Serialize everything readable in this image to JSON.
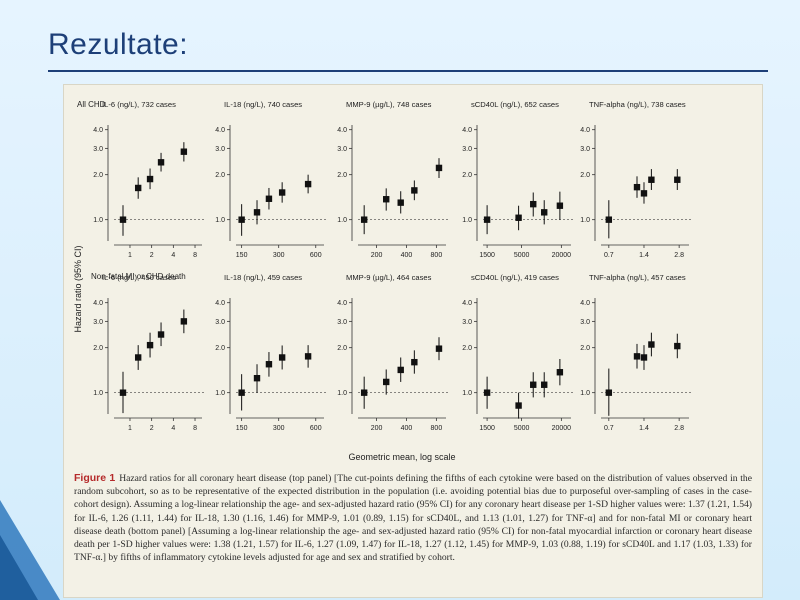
{
  "slide": {
    "title": "Rezultate:",
    "colors": {
      "background": "#dcefff",
      "title": "#1d3f78",
      "panel": "#f3f1e6",
      "caption_label": "#b52a2a",
      "corner": "#3a7fc1"
    }
  },
  "figure": {
    "y_axis_label": "Hazard ratio (95% CI)",
    "x_axis_label": "Geometric mean, log scale",
    "rows": [
      {
        "label": "All CHD"
      },
      {
        "label": "Non-fatal MI or CHD death"
      }
    ],
    "caption_label": "Figure 1",
    "caption_text": "Hazard ratios for all coronary heart disease (top panel) [The cut-points defining the fifths of each cytokine were based on the distribution of values observed in the random subcohort, so as to be representative of the expected distribution in the population (i.e. avoiding potential bias due to purposeful over-sampling of cases in the case-cohort design). Assuming a log-linear relationship the age- and sex-adjusted hazard ratio (95% CI) for any coronary heart disease per 1-SD higher values were: 1.37 (1.21, 1.54) for IL-6, 1.26 (1.11, 1.44) for IL-18, 1.30 (1.16, 1.46) for MMP-9, 1.01 (0.89, 1.15) for sCD40L, and 1.13 (1.01, 1.27) for TNF-α] and for non-fatal MI or coronary heart disease death (bottom panel) [Assuming a log-linear relationship the age- and sex-adjusted hazard ratio (95% CI) for non-fatal myocardial infarction or coronary heart disease death per 1-SD higher values were: 1.38 (1.21, 1.57) for IL-6, 1.27 (1.09, 1.47) for IL-18, 1.27 (1.12, 1.45) for MMP-9, 1.03 (0.88, 1.19) for sCD40L and 1.17 (1.03, 1.33) for TNF-α.] by fifths of inflammatory cytokine levels adjusted for age and sex and stratified by cohort."
  },
  "chart_data": [
    {
      "type": "scatter",
      "row": 0,
      "col": 0,
      "title": "IL-6 (ng/L), 732 cases",
      "x_scale": "log",
      "xlim": [
        0.6,
        10
      ],
      "xticks": [
        1,
        2,
        4,
        8
      ],
      "xtick_labels": [
        "1",
        "2",
        "4",
        "8"
      ],
      "y_scale": "log",
      "ylim": [
        0.72,
        4.3
      ],
      "yticks": [
        1.0,
        2.0,
        3.0,
        4.0
      ],
      "ytick_labels": [
        "1.0",
        "2.0",
        "3.0",
        "4.0"
      ],
      "reference_line": 1.0,
      "points": [
        {
          "x": 0.8,
          "y": 1.0,
          "lo": 0.78,
          "hi": 1.25
        },
        {
          "x": 1.3,
          "y": 1.63,
          "lo": 1.38,
          "hi": 1.92
        },
        {
          "x": 1.9,
          "y": 1.87,
          "lo": 1.6,
          "hi": 2.2
        },
        {
          "x": 2.7,
          "y": 2.42,
          "lo": 2.1,
          "hi": 2.8
        },
        {
          "x": 5.6,
          "y": 2.85,
          "lo": 2.45,
          "hi": 3.3
        }
      ]
    },
    {
      "type": "scatter",
      "row": 0,
      "col": 1,
      "title": "IL-18 (ng/L), 740 cases",
      "x_scale": "log",
      "xlim": [
        135,
        700
      ],
      "xticks": [
        150,
        300,
        600
      ],
      "xtick_labels": [
        "150",
        "300",
        "600"
      ],
      "y_scale": "log",
      "ylim": [
        0.72,
        4.3
      ],
      "yticks": [
        1.0,
        2.0,
        3.0,
        4.0
      ],
      "ytick_labels": [
        "1.0",
        "2.0",
        "3.0",
        "4.0"
      ],
      "reference_line": 1.0,
      "points": [
        {
          "x": 150,
          "y": 1.0,
          "lo": 0.78,
          "hi": 1.27
        },
        {
          "x": 200,
          "y": 1.12,
          "lo": 0.93,
          "hi": 1.35
        },
        {
          "x": 250,
          "y": 1.38,
          "lo": 1.17,
          "hi": 1.63
        },
        {
          "x": 320,
          "y": 1.52,
          "lo": 1.3,
          "hi": 1.78
        },
        {
          "x": 520,
          "y": 1.73,
          "lo": 1.5,
          "hi": 2.0
        }
      ]
    },
    {
      "type": "scatter",
      "row": 0,
      "col": 2,
      "title": "MMP-9 (µg/L), 748 cases",
      "x_scale": "log",
      "xlim": [
        130,
        1000
      ],
      "xticks": [
        200,
        400,
        800
      ],
      "xtick_labels": [
        "200",
        "400",
        "800"
      ],
      "y_scale": "log",
      "ylim": [
        0.72,
        4.3
      ],
      "yticks": [
        1.0,
        2.0,
        3.0,
        4.0
      ],
      "ytick_labels": [
        "1.0",
        "2.0",
        "3.0",
        "4.0"
      ],
      "reference_line": 1.0,
      "points": [
        {
          "x": 150,
          "y": 1.0,
          "lo": 0.8,
          "hi": 1.25
        },
        {
          "x": 250,
          "y": 1.37,
          "lo": 1.15,
          "hi": 1.62
        },
        {
          "x": 350,
          "y": 1.3,
          "lo": 1.1,
          "hi": 1.55
        },
        {
          "x": 480,
          "y": 1.57,
          "lo": 1.35,
          "hi": 1.83
        },
        {
          "x": 850,
          "y": 2.22,
          "lo": 1.9,
          "hi": 2.58
        }
      ]
    },
    {
      "type": "scatter",
      "row": 0,
      "col": 3,
      "title": "sCD40L (ng/L), 652 cases",
      "x_scale": "log",
      "xlim": [
        1300,
        28000
      ],
      "xticks": [
        1500,
        5000,
        20000
      ],
      "xtick_labels": [
        "1500",
        "5000",
        "20000"
      ],
      "y_scale": "log",
      "ylim": [
        0.72,
        4.3
      ],
      "yticks": [
        1.0,
        2.0,
        3.0,
        4.0
      ],
      "ytick_labels": [
        "1.0",
        "2.0",
        "3.0",
        "4.0"
      ],
      "reference_line": 1.0,
      "points": [
        {
          "x": 1500,
          "y": 1.0,
          "lo": 0.8,
          "hi": 1.25
        },
        {
          "x": 4500,
          "y": 1.03,
          "lo": 0.85,
          "hi": 1.24
        },
        {
          "x": 7500,
          "y": 1.27,
          "lo": 1.05,
          "hi": 1.52
        },
        {
          "x": 11000,
          "y": 1.12,
          "lo": 0.93,
          "hi": 1.35
        },
        {
          "x": 19000,
          "y": 1.24,
          "lo": 1.0,
          "hi": 1.54
        }
      ]
    },
    {
      "type": "scatter",
      "row": 0,
      "col": 4,
      "title": "TNF-alpha (ng/L), 738 cases",
      "x_scale": "log",
      "xlim": [
        0.6,
        3.4
      ],
      "xticks": [
        0.7,
        1.4,
        2.8
      ],
      "xtick_labels": [
        "0.7",
        "1.4",
        "2.8"
      ],
      "y_scale": "log",
      "ylim": [
        0.72,
        4.3
      ],
      "yticks": [
        1.0,
        2.0,
        3.0,
        4.0
      ],
      "ytick_labels": [
        "1.0",
        "2.0",
        "3.0",
        "4.0"
      ],
      "reference_line": 1.0,
      "points": [
        {
          "x": 0.7,
          "y": 1.0,
          "lo": 0.75,
          "hi": 1.35
        },
        {
          "x": 1.22,
          "y": 1.65,
          "lo": 1.4,
          "hi": 1.95
        },
        {
          "x": 1.4,
          "y": 1.5,
          "lo": 1.28,
          "hi": 1.78
        },
        {
          "x": 1.62,
          "y": 1.85,
          "lo": 1.58,
          "hi": 2.18
        },
        {
          "x": 2.7,
          "y": 1.85,
          "lo": 1.58,
          "hi": 2.18
        }
      ]
    },
    {
      "type": "scatter",
      "row": 1,
      "col": 0,
      "title": "IL-6 (ng/L), 450 cases",
      "x_scale": "log",
      "xlim": [
        0.6,
        10
      ],
      "xticks": [
        1,
        2,
        4,
        8
      ],
      "xtick_labels": [
        "1",
        "2",
        "4",
        "8"
      ],
      "y_scale": "log",
      "ylim": [
        0.72,
        4.3
      ],
      "yticks": [
        1.0,
        2.0,
        3.0,
        4.0
      ],
      "ytick_labels": [
        "1.0",
        "2.0",
        "3.0",
        "4.0"
      ],
      "reference_line": 1.0,
      "points": [
        {
          "x": 0.8,
          "y": 1.0,
          "lo": 0.73,
          "hi": 1.38
        },
        {
          "x": 1.3,
          "y": 1.72,
          "lo": 1.42,
          "hi": 2.08
        },
        {
          "x": 1.9,
          "y": 2.08,
          "lo": 1.72,
          "hi": 2.52
        },
        {
          "x": 2.7,
          "y": 2.45,
          "lo": 2.05,
          "hi": 2.95
        },
        {
          "x": 5.6,
          "y": 3.0,
          "lo": 2.5,
          "hi": 3.6
        }
      ]
    },
    {
      "type": "scatter",
      "row": 1,
      "col": 1,
      "title": "IL-18 (ng/L), 459 cases",
      "x_scale": "log",
      "xlim": [
        135,
        700
      ],
      "xticks": [
        150,
        300,
        600
      ],
      "xtick_labels": [
        "150",
        "300",
        "600"
      ],
      "y_scale": "log",
      "ylim": [
        0.72,
        4.3
      ],
      "yticks": [
        1.0,
        2.0,
        3.0,
        4.0
      ],
      "ytick_labels": [
        "1.0",
        "2.0",
        "3.0",
        "4.0"
      ],
      "reference_line": 1.0,
      "points": [
        {
          "x": 150,
          "y": 1.0,
          "lo": 0.76,
          "hi": 1.33
        },
        {
          "x": 200,
          "y": 1.25,
          "lo": 1.0,
          "hi": 1.55
        },
        {
          "x": 250,
          "y": 1.55,
          "lo": 1.28,
          "hi": 1.87
        },
        {
          "x": 320,
          "y": 1.72,
          "lo": 1.43,
          "hi": 2.07
        },
        {
          "x": 520,
          "y": 1.75,
          "lo": 1.47,
          "hi": 2.08
        }
      ]
    },
    {
      "type": "scatter",
      "row": 1,
      "col": 2,
      "title": "MMP-9 (µg/L), 464 cases",
      "x_scale": "log",
      "xlim": [
        130,
        1000
      ],
      "xticks": [
        200,
        400,
        800
      ],
      "xtick_labels": [
        "200",
        "400",
        "800"
      ],
      "y_scale": "log",
      "ylim": [
        0.72,
        4.3
      ],
      "yticks": [
        1.0,
        2.0,
        3.0,
        4.0
      ],
      "ytick_labels": [
        "1.0",
        "2.0",
        "3.0",
        "4.0"
      ],
      "reference_line": 1.0,
      "points": [
        {
          "x": 150,
          "y": 1.0,
          "lo": 0.78,
          "hi": 1.28
        },
        {
          "x": 250,
          "y": 1.18,
          "lo": 0.97,
          "hi": 1.43
        },
        {
          "x": 350,
          "y": 1.42,
          "lo": 1.18,
          "hi": 1.72
        },
        {
          "x": 480,
          "y": 1.6,
          "lo": 1.34,
          "hi": 1.92
        },
        {
          "x": 850,
          "y": 1.97,
          "lo": 1.65,
          "hi": 2.35
        }
      ]
    },
    {
      "type": "scatter",
      "row": 1,
      "col": 3,
      "title": "sCD40L (ng/L), 419 cases",
      "x_scale": "log",
      "xlim": [
        1300,
        28000
      ],
      "xticks": [
        1500,
        5000,
        20000
      ],
      "xtick_labels": [
        "1500",
        "5000",
        "20000"
      ],
      "y_scale": "log",
      "ylim": [
        0.72,
        4.3
      ],
      "yticks": [
        1.0,
        2.0,
        3.0,
        4.0
      ],
      "ytick_labels": [
        "1.0",
        "2.0",
        "3.0",
        "4.0"
      ],
      "reference_line": 1.0,
      "points": [
        {
          "x": 1500,
          "y": 1.0,
          "lo": 0.78,
          "hi": 1.28
        },
        {
          "x": 4500,
          "y": 0.82,
          "lo": 0.67,
          "hi": 1.0
        },
        {
          "x": 7500,
          "y": 1.13,
          "lo": 0.93,
          "hi": 1.37
        },
        {
          "x": 11000,
          "y": 1.13,
          "lo": 0.93,
          "hi": 1.37
        },
        {
          "x": 19000,
          "y": 1.37,
          "lo": 1.12,
          "hi": 1.68
        }
      ]
    },
    {
      "type": "scatter",
      "row": 1,
      "col": 4,
      "title": "TNF-alpha (ng/L), 457 cases",
      "x_scale": "log",
      "xlim": [
        0.6,
        3.4
      ],
      "xticks": [
        0.7,
        1.4,
        2.8
      ],
      "xtick_labels": [
        "0.7",
        "1.4",
        "2.8"
      ],
      "y_scale": "log",
      "ylim": [
        0.72,
        4.3
      ],
      "yticks": [
        1.0,
        2.0,
        3.0,
        4.0
      ],
      "ytick_labels": [
        "1.0",
        "2.0",
        "3.0",
        "4.0"
      ],
      "reference_line": 1.0,
      "points": [
        {
          "x": 0.7,
          "y": 1.0,
          "lo": 0.7,
          "hi": 1.45
        },
        {
          "x": 1.22,
          "y": 1.75,
          "lo": 1.45,
          "hi": 2.12
        },
        {
          "x": 1.4,
          "y": 1.72,
          "lo": 1.42,
          "hi": 2.08
        },
        {
          "x": 1.62,
          "y": 2.1,
          "lo": 1.75,
          "hi": 2.52
        },
        {
          "x": 2.7,
          "y": 2.05,
          "lo": 1.7,
          "hi": 2.48
        }
      ]
    }
  ]
}
